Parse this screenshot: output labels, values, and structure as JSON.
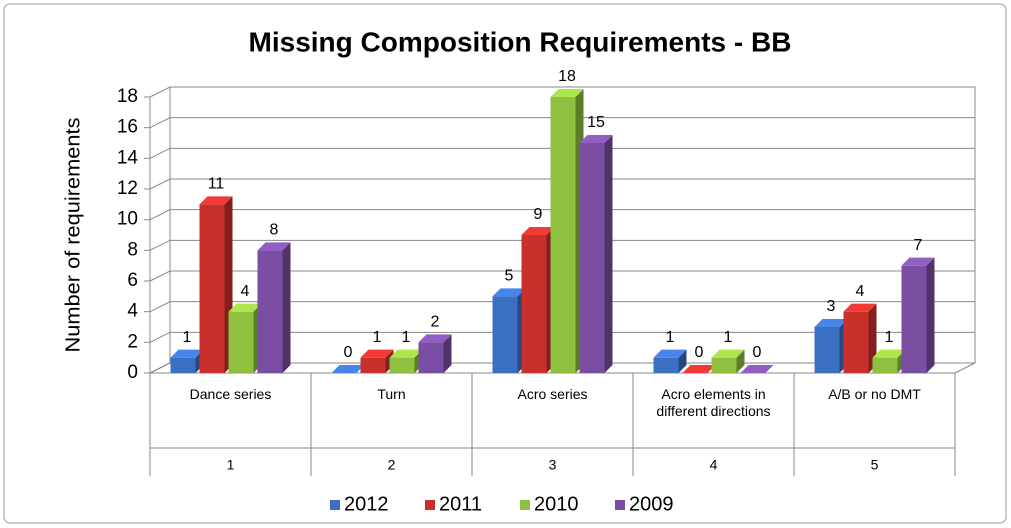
{
  "chart_data": {
    "type": "bar3d",
    "title": "Missing Composition Requirements - BB",
    "y_axis_label": "Number of requirements",
    "categories": [
      "Dance series",
      "Turn",
      "Acro series",
      "Acro elements in different directions",
      "A/B or no DMT"
    ],
    "category_numbers": [
      "1",
      "2",
      "3",
      "4",
      "5"
    ],
    "series": [
      {
        "name": "2012",
        "color": "#3b6fc2",
        "values": [
          1,
          0,
          5,
          1,
          3
        ]
      },
      {
        "name": "2011",
        "color": "#c9302b",
        "values": [
          11,
          1,
          9,
          0,
          4
        ]
      },
      {
        "name": "2010",
        "color": "#8fc03f",
        "values": [
          4,
          1,
          18,
          1,
          1
        ]
      },
      {
        "name": "2009",
        "color": "#7a4ea3",
        "values": [
          8,
          2,
          15,
          0,
          7
        ]
      }
    ],
    "ylim": [
      0,
      18
    ],
    "yticks": [
      0,
      2,
      4,
      6,
      8,
      10,
      12,
      14,
      16,
      18
    ],
    "grid": true,
    "legend": "bottom"
  }
}
